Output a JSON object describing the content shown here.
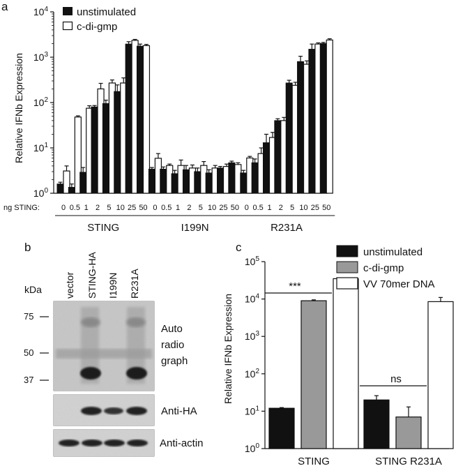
{
  "panel_labels": {
    "a": "a",
    "b": "b",
    "c": "c"
  },
  "colors": {
    "unstimulated": "#111111",
    "cdigmp": "#ffffff",
    "vv": "#ffffff",
    "cdigmp_c": "#999999",
    "red": "#d7262b",
    "blue": "#283593"
  },
  "chart_data": [
    {
      "id": "panel-a",
      "type": "bar",
      "ylabel": "Relative IFNb Expression",
      "yscale": "log",
      "ylim": [
        1,
        10000
      ],
      "yticks": [
        {
          "base": "10",
          "exp": "0"
        },
        {
          "base": "10",
          "exp": "1"
        },
        {
          "base": "10",
          "exp": "2"
        },
        {
          "base": "10",
          "exp": "3"
        },
        {
          "base": "10",
          "exp": "4"
        }
      ],
      "x_prefix": "ng STING:",
      "legend": [
        "unstimulated",
        "c-di-gmp"
      ],
      "groups": [
        {
          "name": "STING",
          "color": "#111111",
          "categories": [
            "0",
            "0.5",
            "1",
            "2",
            "5",
            "10",
            "25",
            "50"
          ],
          "unstimulated": [
            1.6,
            1.35,
            2.9,
            80,
            95,
            175,
            1950,
            1750
          ],
          "unstimulated_err": [
            0.15,
            0.25,
            0.8,
            6,
            18,
            70,
            250,
            200
          ],
          "cdigmp": [
            3.1,
            48,
            75,
            200,
            270,
            270,
            2350,
            1800
          ],
          "cdigmp_err": [
            0.9,
            3,
            10,
            65,
            45,
            80,
            120,
            120
          ]
        },
        {
          "name": "I199N",
          "color": "#d7262b",
          "categories": [
            "0",
            "0.5",
            "1",
            "2",
            "5",
            "10",
            "25",
            "50"
          ],
          "unstimulated": [
            3.4,
            3.4,
            2.7,
            3.3,
            3.0,
            2.8,
            3.6,
            4.7
          ],
          "unstimulated_err": [
            0.3,
            0.4,
            0.5,
            0.8,
            0.6,
            0.5,
            0.3,
            0.4
          ],
          "cdigmp": [
            5.9,
            4.1,
            4.1,
            3.6,
            4.1,
            3.6,
            3.9,
            4.3
          ],
          "cdigmp_err": [
            1.6,
            0.3,
            1.3,
            0.6,
            0.9,
            0.5,
            0.5,
            0.4
          ]
        },
        {
          "name": "R231A",
          "color": "#283593",
          "categories": [
            "0",
            "0.5",
            "1",
            "2",
            "5",
            "10",
            "25",
            "50"
          ],
          "unstimulated": [
            2.8,
            4.7,
            13,
            40,
            270,
            800,
            1500,
            2000
          ],
          "unstimulated_err": [
            0.4,
            1.0,
            7,
            4,
            40,
            250,
            450,
            120
          ],
          "cdigmp": [
            6.0,
            7.5,
            17,
            40,
            240,
            700,
            1950,
            2400
          ],
          "cdigmp_err": [
            0.5,
            2.5,
            5,
            7,
            40,
            130,
            120,
            150
          ]
        }
      ]
    },
    {
      "id": "panel-c",
      "type": "bar",
      "ylabel": "Relative IFNb Expression",
      "yscale": "log",
      "ylim": [
        1,
        100000
      ],
      "yticks": [
        {
          "base": "10",
          "exp": "0"
        },
        {
          "base": "10",
          "exp": "1"
        },
        {
          "base": "10",
          "exp": "2"
        },
        {
          "base": "10",
          "exp": "3"
        },
        {
          "base": "10",
          "exp": "4"
        },
        {
          "base": "10",
          "exp": "5"
        }
      ],
      "categories": [
        "STING",
        "STING R231A"
      ],
      "series": [
        {
          "name": "unstimulated",
          "color": "#111111",
          "values": [
            12,
            20
          ],
          "err": [
            0.5,
            6
          ]
        },
        {
          "name": "c-di-gmp",
          "color": "#999999",
          "values": [
            9000,
            7
          ],
          "err": [
            500,
            6
          ]
        },
        {
          "name": "VV 70mer DNA",
          "color": "#ffffff",
          "values": [
            35000,
            8500
          ],
          "err": [
            1000,
            2500
          ]
        }
      ],
      "annotations": [
        {
          "text": "***",
          "group": 0
        },
        {
          "text": "ns",
          "group": 1
        }
      ]
    }
  ],
  "blot": {
    "lanes": [
      {
        "label": "vector",
        "color": "#111111"
      },
      {
        "label": "STING-HA",
        "color": "#111111"
      },
      {
        "label": "I199N",
        "color": "#d7262b"
      },
      {
        "label": "R231A",
        "color": "#283593"
      }
    ],
    "kda_label": "kDa",
    "markers": [
      "75",
      "50",
      "37"
    ],
    "labels": {
      "autoradio": [
        "Auto",
        "radio",
        "graph"
      ],
      "antiha": "Anti-HA",
      "antiactin": "Anti-actin"
    }
  }
}
